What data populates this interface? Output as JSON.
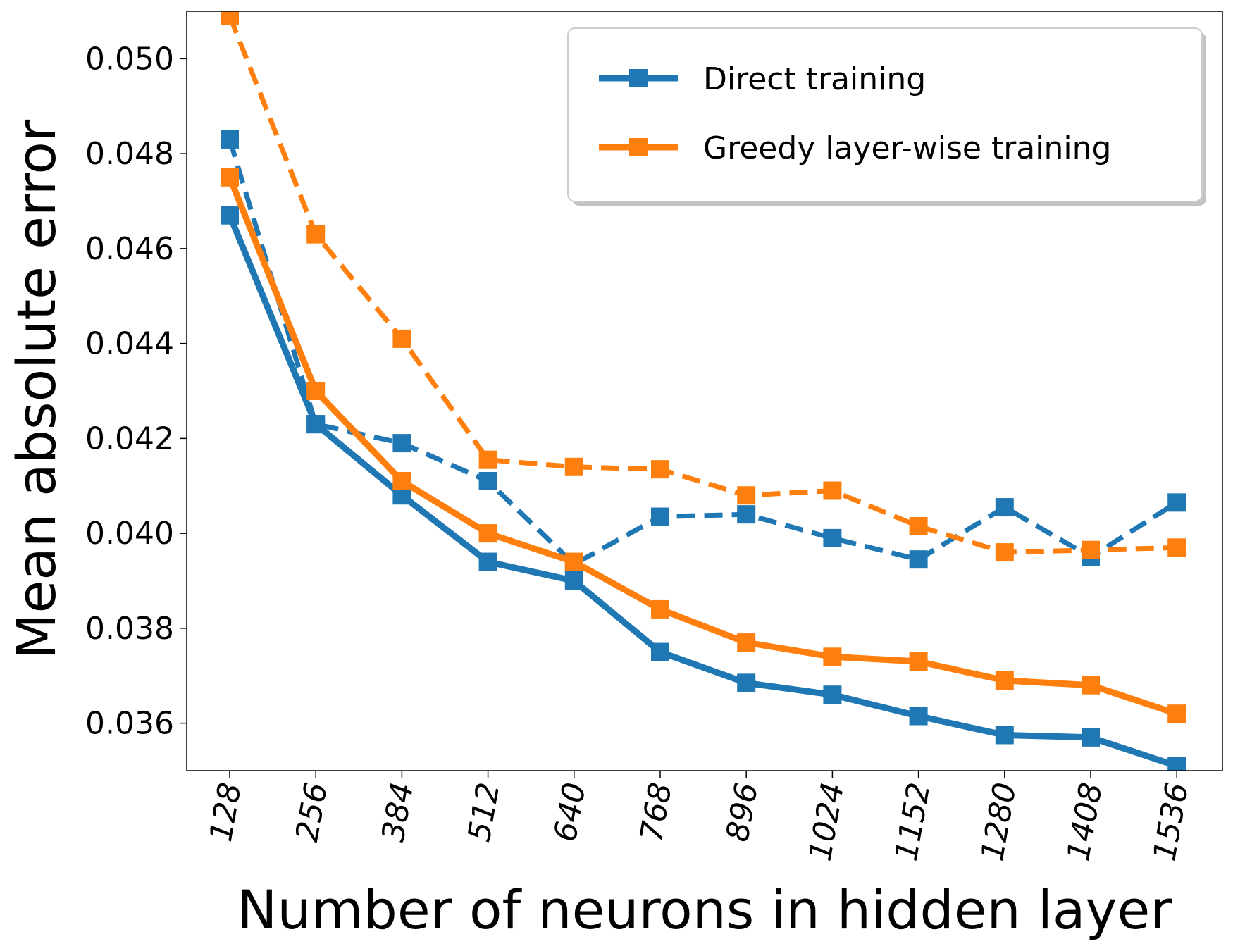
{
  "chart_data": {
    "type": "line",
    "title": "",
    "xlabel": "Number of neurons in hidden layer",
    "ylabel": "Mean absolute error",
    "x": [
      128,
      256,
      384,
      512,
      640,
      768,
      896,
      1024,
      1152,
      1280,
      1408,
      1536
    ],
    "ylim": [
      0.035,
      0.051
    ],
    "yticks": [
      "0.036",
      "0.038",
      "0.040",
      "0.042",
      "0.044",
      "0.046",
      "0.048",
      "0.050"
    ],
    "ytick_values": [
      0.036,
      0.038,
      0.04,
      0.042,
      0.044,
      0.046,
      0.048,
      0.05
    ],
    "legend_position": "top-right",
    "grid": false,
    "series": [
      {
        "name": "Direct training",
        "color": "#1f77b4",
        "style": "solid",
        "values": [
          0.0467,
          0.0423,
          0.0408,
          0.0394,
          0.039,
          0.0375,
          0.03685,
          0.0366,
          0.03615,
          0.03575,
          0.0357,
          0.0351
        ]
      },
      {
        "name": "Greedy layer-wise training",
        "color": "#ff7f0e",
        "style": "solid",
        "values": [
          0.0475,
          0.043,
          0.0411,
          0.04,
          0.0394,
          0.0384,
          0.0377,
          0.0374,
          0.0373,
          0.0369,
          0.0368,
          0.0362
        ]
      },
      {
        "color": "#1f77b4",
        "style": "dashed",
        "values": [
          0.0483,
          0.0423,
          0.0419,
          0.0411,
          0.03935,
          0.04035,
          0.0404,
          0.0399,
          0.03945,
          0.04055,
          0.0395,
          0.04065
        ]
      },
      {
        "color": "#ff7f0e",
        "style": "dashed",
        "values": [
          0.0509,
          0.0463,
          0.0441,
          0.04155,
          0.0414,
          0.04135,
          0.0408,
          0.0409,
          0.04015,
          0.0396,
          0.03965,
          0.0397
        ]
      }
    ]
  }
}
